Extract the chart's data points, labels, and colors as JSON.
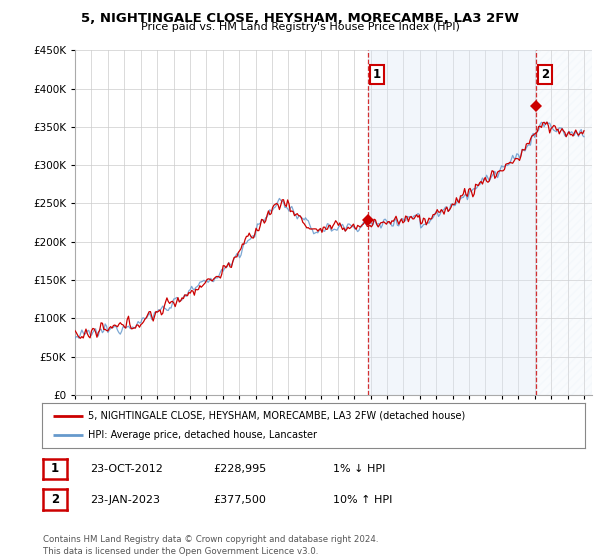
{
  "title": "5, NIGHTINGALE CLOSE, HEYSHAM, MORECAMBE, LA3 2FW",
  "subtitle": "Price paid vs. HM Land Registry's House Price Index (HPI)",
  "ylim": [
    0,
    450000
  ],
  "yticks": [
    0,
    50000,
    100000,
    150000,
    200000,
    250000,
    300000,
    350000,
    400000,
    450000
  ],
  "background_color": "#ffffff",
  "plot_bg_color": "#ffffff",
  "grid_color": "#cccccc",
  "hpi_color": "#6699cc",
  "price_color": "#cc0000",
  "marker_color": "#cc0000",
  "vline_color": "#cc0000",
  "shade_color": "#dce8f5",
  "legend_label_price": "5, NIGHTINGALE CLOSE, HEYSHAM, MORECAMBE, LA3 2FW (detached house)",
  "legend_label_hpi": "HPI: Average price, detached house, Lancaster",
  "annotation1_label": "1",
  "annotation1_date": "23-OCT-2012",
  "annotation1_price": "£228,995",
  "annotation1_hpi": "1% ↓ HPI",
  "annotation2_label": "2",
  "annotation2_date": "23-JAN-2023",
  "annotation2_price": "£377,500",
  "annotation2_hpi": "10% ↑ HPI",
  "footer": "Contains HM Land Registry data © Crown copyright and database right 2024.\nThis data is licensed under the Open Government Licence v3.0.",
  "xstart_year": 1995,
  "xend_year": 2026,
  "sale1_year": 2012.82,
  "sale1_value": 228995,
  "sale2_year": 2023.07,
  "sale2_value": 377500
}
